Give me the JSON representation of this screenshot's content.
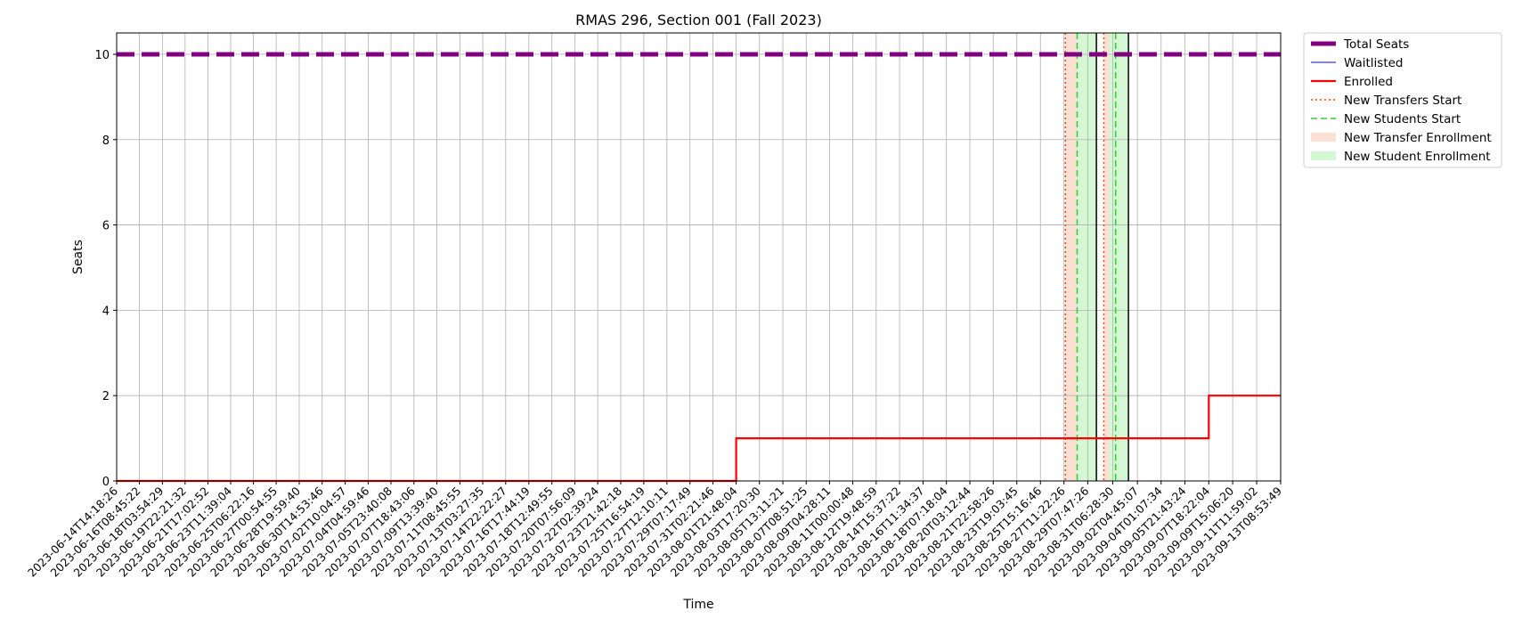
{
  "chart_data": {
    "type": "line",
    "title": "RMAS 296, Section 001 (Fall 2023)",
    "xlabel": "Time",
    "ylabel": "Seats",
    "ylim": [
      0,
      10.5
    ],
    "yticks": [
      0,
      2,
      4,
      6,
      8,
      10
    ],
    "grid": true,
    "legend_position": "outside-top-right",
    "xticks": [
      "2023-06-14T14:18:26",
      "2023-06-16T08:45:22",
      "2023-06-18T03:54:29",
      "2023-06-19T22:21:32",
      "2023-06-21T17:02:52",
      "2023-06-23T11:39:04",
      "2023-06-25T06:22:16",
      "2023-06-27T00:54:55",
      "2023-06-28T19:59:40",
      "2023-06-30T14:53:46",
      "2023-07-02T10:04:57",
      "2023-07-04T04:59:46",
      "2023-07-05T23:40:08",
      "2023-07-07T18:43:06",
      "2023-07-09T13:39:40",
      "2023-07-11T08:45:55",
      "2023-07-13T03:27:35",
      "2023-07-14T22:22:27",
      "2023-07-16T17:44:19",
      "2023-07-18T12:49:55",
      "2023-07-20T07:56:09",
      "2023-07-22T02:39:24",
      "2023-07-23T21:42:18",
      "2023-07-25T16:54:19",
      "2023-07-27T12:10:11",
      "2023-07-29T07:17:49",
      "2023-07-31T02:21:46",
      "2023-08-01T21:48:04",
      "2023-08-03T17:20:30",
      "2023-08-05T13:11:21",
      "2023-08-07T08:51:25",
      "2023-08-09T04:28:11",
      "2023-08-11T00:00:48",
      "2023-08-12T19:48:59",
      "2023-08-14T15:37:22",
      "2023-08-16T11:34:37",
      "2023-08-18T07:18:04",
      "2023-08-20T03:12:44",
      "2023-08-21T22:58:26",
      "2023-08-23T19:03:45",
      "2023-08-25T15:16:46",
      "2023-08-27T11:22:26",
      "2023-08-29T07:47:26",
      "2023-08-31T06:28:30",
      "2023-09-02T04:45:07",
      "2023-09-04T01:07:34",
      "2023-09-05T21:43:24",
      "2023-09-07T18:22:04",
      "2023-09-09T15:06:20",
      "2023-09-11T11:59:02",
      "2023-09-13T08:53:49"
    ],
    "series": [
      {
        "name": "Total Seats",
        "color": "#800080",
        "style": "dashed-thick",
        "x": [
          "2023-06-14T14:18:26",
          "2023-09-13T08:53:49"
        ],
        "values": [
          10,
          10
        ]
      },
      {
        "name": "Waitlisted",
        "color": "#0000ff",
        "style": "solid-thin",
        "x": [
          "2023-06-14T14:18:26",
          "2023-09-13T08:53:49"
        ],
        "values": [
          0,
          0
        ]
      },
      {
        "name": "Enrolled",
        "color": "#ff0000",
        "style": "step",
        "x": [
          "2023-06-14T14:18:26",
          "2023-08-01T21:48:04",
          "2023-09-07T18:22:04",
          "2023-09-13T08:53:49"
        ],
        "values": [
          0,
          1,
          2,
          2
        ]
      }
    ],
    "markers": [
      {
        "name": "New Transfers Start",
        "color": "#ff4500",
        "style": "dotted",
        "at": [
          "2023-08-27T14:00:00",
          "2023-08-30T14:00:00"
        ]
      },
      {
        "name": "New Students Start",
        "color": "#32cd32",
        "style": "dashed",
        "at": [
          "2023-08-28T12:00:00",
          "2023-08-31T12:00:00"
        ]
      }
    ],
    "spans": [
      {
        "name": "New Transfer Enrollment",
        "color": "#f4a582",
        "ranges": [
          [
            "2023-08-27T14:00:00",
            "2023-08-28T12:00:00"
          ],
          [
            "2023-08-30T14:00:00",
            "2023-08-31T00:00:00"
          ]
        ]
      },
      {
        "name": "New Student Enrollment",
        "color": "#90ee90",
        "ranges": [
          [
            "2023-08-28T12:00:00",
            "2023-08-30T00:00:00"
          ],
          [
            "2023-08-31T00:00:00",
            "2023-09-01T12:00:00"
          ]
        ]
      }
    ],
    "boundaries": [
      "2023-08-30T00:00:00",
      "2023-09-01T12:00:00"
    ]
  }
}
